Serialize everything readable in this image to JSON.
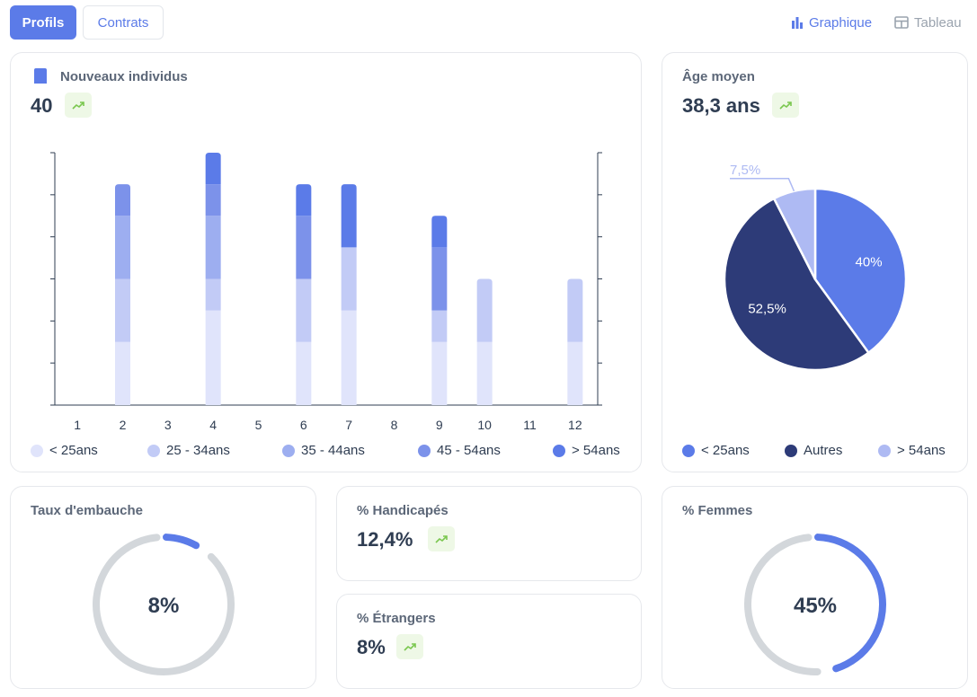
{
  "tabs": [
    {
      "label": "Profils",
      "active": true
    },
    {
      "label": "Contrats",
      "active": false
    }
  ],
  "view_toggle": {
    "graph_label": "Graphique",
    "graph_icon": "bar-chart-icon",
    "table_label": "Tableau",
    "table_icon": "table-icon",
    "active": "graph"
  },
  "colors": {
    "c1": "#e0e4fb",
    "c2": "#c2cbf6",
    "c3": "#9daef0",
    "c4": "#7c92ea",
    "c5": "#5b7be8",
    "dark": "#2d3b78",
    "ring": "#d3d7db",
    "trend": "#7ac74f"
  },
  "new_individuals": {
    "title": "Nouveaux individus",
    "icon": "bookmark-icon",
    "value": "40",
    "trend_icon": "trend-up-icon"
  },
  "avg_age": {
    "title": "Âge moyen",
    "value": "38,3 ans",
    "trend_icon": "trend-up-icon"
  },
  "hiring_rate": {
    "title": "Taux d'embauche",
    "value": "8%",
    "percent": 8
  },
  "disabled": {
    "title": "% Handicapés",
    "value": "12,4%",
    "trend_icon": "trend-up-icon"
  },
  "foreigners": {
    "title": "% Étrangers",
    "value": "8%",
    "trend_icon": "trend-up-icon"
  },
  "women": {
    "title": "% Femmes",
    "value": "45%",
    "percent": 45
  },
  "chart_data": [
    {
      "type": "bar",
      "stacked": true,
      "categories": [
        "1",
        "2",
        "3",
        "4",
        "5",
        "6",
        "7",
        "8",
        "9",
        "10",
        "11",
        "12"
      ],
      "series": [
        {
          "name": "< 25ans",
          "values": [
            0,
            2,
            0,
            3,
            0,
            2,
            3,
            0,
            2,
            2,
            0,
            2
          ]
        },
        {
          "name": "25 - 34ans",
          "values": [
            0,
            2,
            0,
            1,
            0,
            2,
            2,
            0,
            1,
            2,
            0,
            2
          ]
        },
        {
          "name": "35 - 44ans",
          "values": [
            0,
            2,
            0,
            2,
            0,
            0,
            0,
            0,
            0,
            0,
            0,
            0
          ]
        },
        {
          "name": "45 - 54ans",
          "values": [
            0,
            1,
            0,
            1,
            0,
            2,
            0,
            0,
            2,
            0,
            0,
            0
          ]
        },
        {
          "name": "> 54ans",
          "values": [
            0,
            0,
            0,
            1,
            0,
            1,
            2,
            0,
            1,
            0,
            0,
            0
          ]
        }
      ],
      "ylim": [
        0,
        8
      ],
      "legend": "bottom"
    },
    {
      "type": "pie",
      "labels": [
        "< 25ans",
        "Autres",
        "> 54ans"
      ],
      "values": [
        40,
        52.5,
        7.5
      ],
      "value_labels": [
        "40%",
        "52,5%",
        "7,5%"
      ],
      "legend": "bottom"
    }
  ]
}
